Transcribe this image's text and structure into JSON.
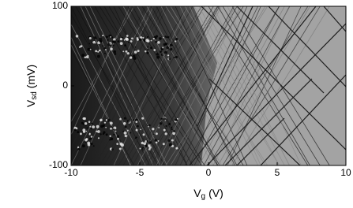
{
  "chart_data": {
    "type": "heatmap",
    "xlabel": [
      "V",
      "g",
      "(V)"
    ],
    "ylabel": [
      "V",
      "sd",
      "(mV)"
    ],
    "xlim": [
      -10,
      10
    ],
    "xticks": [
      -10,
      -5,
      0,
      5,
      10
    ],
    "ylim": [
      -100,
      100
    ],
    "yticks": [
      -100,
      0,
      100
    ]
  }
}
